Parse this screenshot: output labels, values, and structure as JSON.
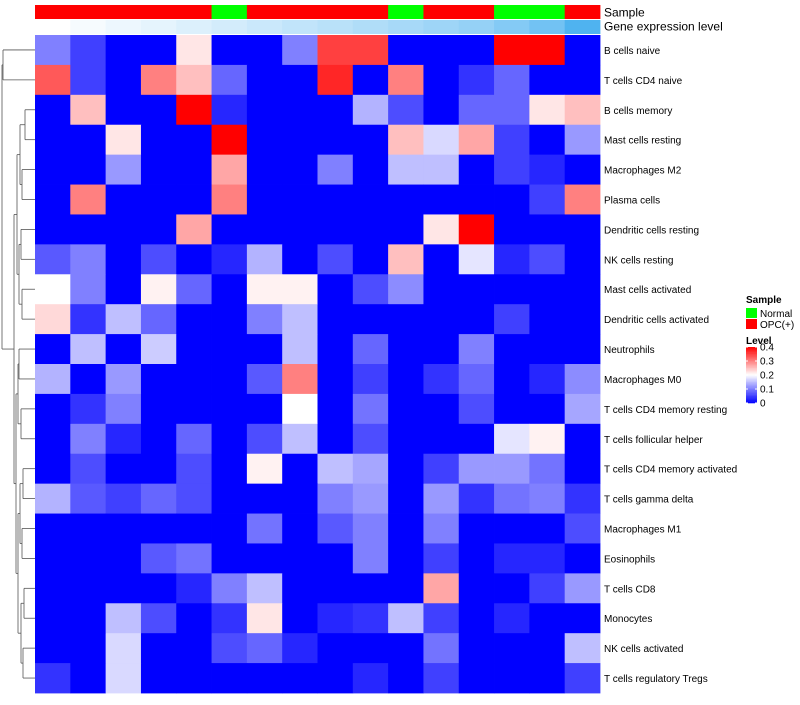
{
  "chart_data": {
    "type": "heatmap",
    "title": "",
    "annotation_labels": {
      "sample": "Sample",
      "gene_expression": "Gene expression level"
    },
    "sample_annotation": [
      "OPC(+)",
      "OPC(+)",
      "OPC(+)",
      "OPC(+)",
      "OPC(+)",
      "Normal",
      "OPC(+)",
      "OPC(+)",
      "OPC(+)",
      "OPC(+)",
      "Normal",
      "OPC(+)",
      "OPC(+)",
      "Normal",
      "Normal",
      "OPC(+)"
    ],
    "gene_expression_level": [
      0.0,
      0.05,
      0.1,
      0.15,
      0.2,
      0.25,
      0.3,
      0.35,
      0.4,
      0.45,
      0.5,
      0.55,
      0.6,
      0.7,
      0.8,
      1.0
    ],
    "rows": [
      "B cells naive",
      "T cells CD4 naive",
      "B cells memory",
      "Mast cells resting",
      "Macrophages M2",
      "Plasma cells",
      "Dendritic cells resting",
      "NK cells resting",
      "Mast cells activated",
      "Dendritic cells activated",
      "Neutrophils",
      "Macrophages M0",
      "T cells CD4 memory resting",
      "T cells follicular helper",
      "T cells CD4 memory activated",
      "T cells gamma delta",
      "Macrophages M1",
      "Eosinophils",
      "T cells CD8",
      "Monocytes",
      "NK cells activated",
      "T cells regulatory  Tregs"
    ],
    "values": [
      [
        0.1,
        0.05,
        0,
        0,
        0.22,
        0,
        0,
        0.1,
        0.35,
        0.35,
        0,
        0,
        0,
        0.4,
        0.4,
        0
      ],
      [
        0.33,
        0.05,
        0,
        0.3,
        0.25,
        0.08,
        0,
        0,
        0.37,
        0,
        0.3,
        0,
        0.04,
        0.08,
        0,
        0
      ],
      [
        0,
        0.25,
        0,
        0,
        0.4,
        0.03,
        0,
        0,
        0,
        0.14,
        0.06,
        0,
        0.08,
        0.08,
        0.22,
        0.25
      ],
      [
        0,
        0,
        0.22,
        0,
        0,
        0.4,
        0,
        0,
        0,
        0,
        0.25,
        0.17,
        0.27,
        0.05,
        0,
        0.12
      ],
      [
        0,
        0,
        0.12,
        0,
        0,
        0.27,
        0,
        0,
        0.1,
        0,
        0.15,
        0.15,
        0,
        0.05,
        0.03,
        0
      ],
      [
        0,
        0.3,
        0,
        0,
        0,
        0.3,
        0,
        0,
        0,
        0,
        0,
        0,
        0,
        0,
        0.05,
        0.3
      ],
      [
        0,
        0,
        0,
        0,
        0.27,
        0,
        0,
        0,
        0,
        0,
        0,
        0.22,
        0.4,
        0,
        0,
        0
      ],
      [
        0.07,
        0.1,
        0,
        0.06,
        0,
        0.03,
        0.14,
        0,
        0.06,
        0,
        0.25,
        0,
        0.18,
        0.03,
        0.06,
        0
      ],
      [
        0.2,
        0.1,
        0,
        0.21,
        0.08,
        0,
        0.21,
        0.21,
        0,
        0.06,
        0.11,
        0,
        0,
        0,
        0,
        0
      ],
      [
        0.23,
        0.04,
        0.15,
        0.08,
        0,
        0,
        0.1,
        0.15,
        0,
        0,
        0,
        0,
        0,
        0.05,
        0,
        0
      ],
      [
        0,
        0.15,
        0,
        0.16,
        0,
        0,
        0,
        0.15,
        0,
        0.08,
        0,
        0,
        0.1,
        0,
        0,
        0
      ],
      [
        0.14,
        0,
        0.12,
        0,
        0,
        0,
        0.07,
        0.3,
        0,
        0.05,
        0,
        0.04,
        0.08,
        0,
        0.03,
        0.11
      ],
      [
        0,
        0.04,
        0.1,
        0,
        0,
        0,
        0,
        0.2,
        0,
        0.09,
        0,
        0,
        0.06,
        0,
        0,
        0.13
      ],
      [
        0,
        0.1,
        0.03,
        0,
        0.08,
        0,
        0.06,
        0.15,
        0,
        0.06,
        0,
        0,
        0,
        0.18,
        0.21,
        0
      ],
      [
        0,
        0.06,
        0,
        0,
        0.06,
        0,
        0.21,
        0,
        0.15,
        0.13,
        0,
        0.05,
        0.12,
        0.12,
        0.09,
        0
      ],
      [
        0.14,
        0.07,
        0.05,
        0.08,
        0.06,
        0,
        0,
        0,
        0.1,
        0.12,
        0,
        0.12,
        0.04,
        0.09,
        0.1,
        0.04
      ],
      [
        0,
        0,
        0,
        0,
        0,
        0,
        0.09,
        0,
        0.07,
        0.1,
        0,
        0.1,
        0,
        0,
        0,
        0.06
      ],
      [
        0,
        0,
        0,
        0.07,
        0.09,
        0,
        0,
        0,
        0,
        0.1,
        0,
        0.05,
        0,
        0.03,
        0.03,
        0
      ],
      [
        0,
        0,
        0,
        0,
        0.03,
        0.1,
        0.15,
        0,
        0,
        0,
        0,
        0.27,
        0,
        0,
        0.05,
        0.12
      ],
      [
        0,
        0,
        0.15,
        0.06,
        0,
        0.04,
        0.22,
        0,
        0.03,
        0.04,
        0.15,
        0.05,
        0,
        0.03,
        0,
        0
      ],
      [
        0,
        0,
        0.17,
        0,
        0,
        0.06,
        0.08,
        0.03,
        0,
        0,
        0,
        0.09,
        0,
        0,
        0,
        0.15
      ],
      [
        0.04,
        0,
        0.17,
        0,
        0,
        0,
        0,
        0,
        0,
        0.03,
        0,
        0.05,
        0,
        0,
        0,
        0.05
      ]
    ],
    "color_scale": {
      "min": 0,
      "max": 0.4,
      "low": "#0000ff",
      "mid": "#ffffff",
      "high": "#ff0000",
      "mid_value": 0.2
    },
    "legend": {
      "sample_title": "Sample",
      "sample_items": [
        {
          "label": "Normal",
          "color": "#00ff00"
        },
        {
          "label": "OPC(+)",
          "color": "#ff0000"
        }
      ],
      "level_title": "Level",
      "level_ticks": [
        "0.4",
        "0.3",
        "0.2",
        "0.1",
        "0"
      ],
      "level_tick_values": [
        0.4,
        0.3,
        0.2,
        0.1,
        0
      ]
    },
    "colors": {
      "normal": "#00ff00",
      "opc": "#ff0000",
      "expr_low": "#ffffff",
      "expr_high": "#4fb3f0"
    }
  }
}
